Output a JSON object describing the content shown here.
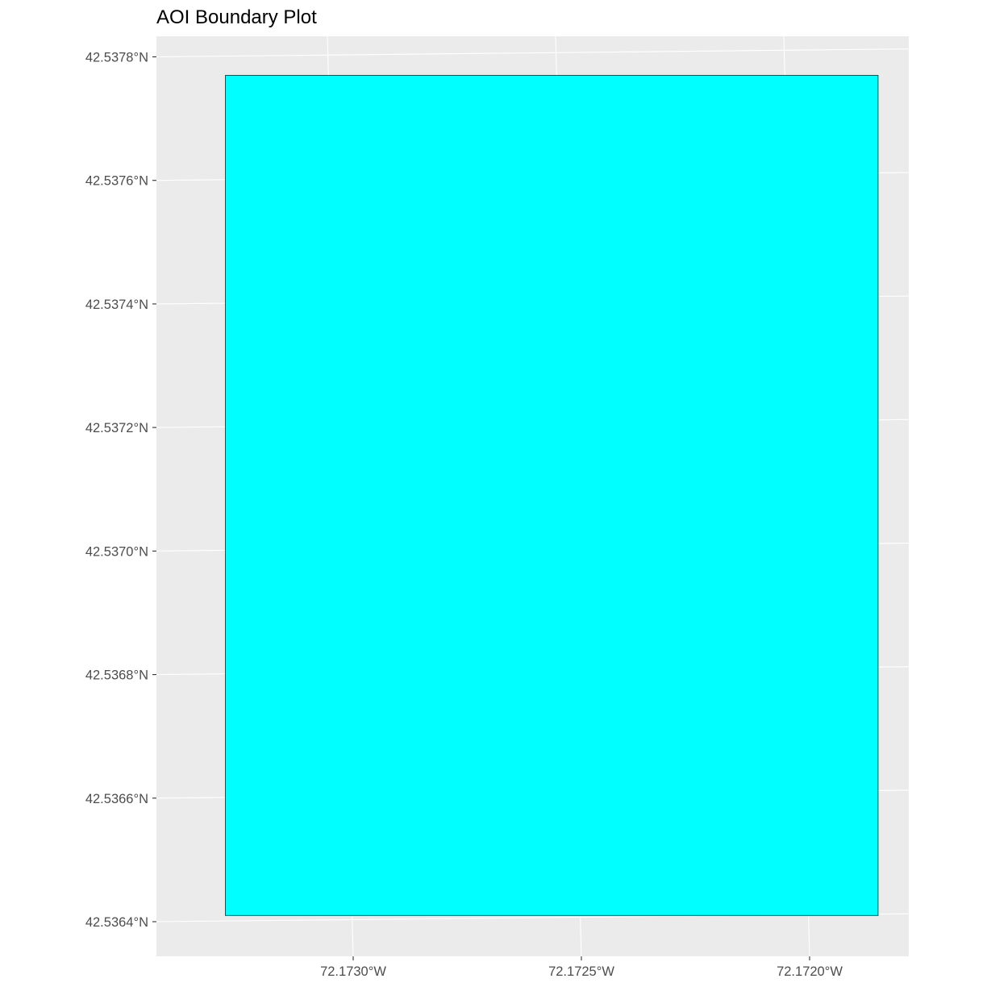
{
  "chart_data": {
    "type": "map",
    "title": "AOI Boundary Plot",
    "subtitle": "",
    "xlabel": "",
    "ylabel": "",
    "crs": "projected (graticule slightly rotated)",
    "xlim": [
      -72.17335,
      -72.17184
    ],
    "ylim": [
      42.53633,
      42.53781
    ],
    "x_ticks": [
      {
        "value": -72.173,
        "label": "72.1730°W"
      },
      {
        "value": -72.1725,
        "label": "72.1725°W"
      },
      {
        "value": -72.172,
        "label": "72.1720°W"
      }
    ],
    "y_ticks": [
      {
        "value": 42.5364,
        "label": "42.5364°N"
      },
      {
        "value": 42.5366,
        "label": "42.5366°N"
      },
      {
        "value": 42.5368,
        "label": "42.5368°N"
      },
      {
        "value": 42.537,
        "label": "42.5370°N"
      },
      {
        "value": 42.5372,
        "label": "42.5372°N"
      },
      {
        "value": 42.5374,
        "label": "42.5374°N"
      },
      {
        "value": 42.5376,
        "label": "42.5376°N"
      },
      {
        "value": 42.5378,
        "label": "42.5378°N"
      }
    ],
    "grid": true,
    "legend": "none",
    "polygon": {
      "name": "",
      "fill": "#00FFFF",
      "stroke": "#1f4f4f",
      "lon_min": -72.17328,
      "lon_max": -72.17185,
      "lat_min": 42.53641,
      "lat_max": 42.53777
    },
    "colors": {
      "panel_background": "#EBEBEB",
      "grid": "#FFFFFF",
      "tick_text": "#4D4D4D",
      "tick_mark": "#333333"
    }
  }
}
